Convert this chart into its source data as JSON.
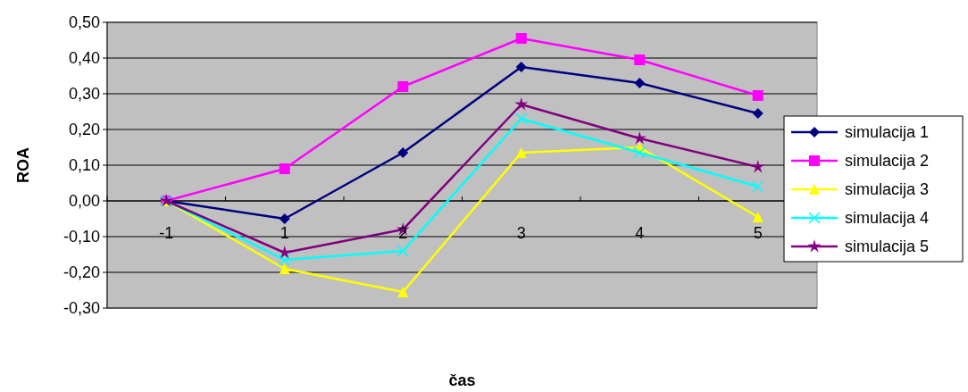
{
  "chart_data": {
    "type": "line",
    "xlabel": "čas",
    "ylabel": "ROA",
    "categories": [
      "-1",
      "1",
      "2",
      "3",
      "4",
      "5"
    ],
    "series": [
      {
        "name": "simulacija 1",
        "color": "#000080",
        "marker": "diamond",
        "values": [
          0,
          -0.05,
          0.135,
          0.375,
          0.33,
          0.245
        ]
      },
      {
        "name": "simulacija 2",
        "color": "#ff00ff",
        "marker": "square",
        "values": [
          0,
          0.09,
          0.32,
          0.455,
          0.395,
          0.295
        ]
      },
      {
        "name": "simulacija 3",
        "color": "#ffff00",
        "marker": "triangle",
        "values": [
          0,
          -0.19,
          -0.255,
          0.135,
          0.15,
          -0.045
        ]
      },
      {
        "name": "simulacija 4",
        "color": "#00ffff",
        "marker": "cross",
        "values": [
          0,
          -0.165,
          -0.14,
          0.23,
          0.135,
          0.04
        ]
      },
      {
        "name": "simulacija 5",
        "color": "#800080",
        "marker": "star",
        "values": [
          0,
          -0.145,
          -0.08,
          0.27,
          0.175,
          0.095
        ]
      }
    ],
    "ylim": [
      -0.3,
      0.5
    ],
    "yticks": [
      {
        "value": -0.3,
        "label": "-0,30"
      },
      {
        "value": -0.2,
        "label": "-0,20"
      },
      {
        "value": -0.1,
        "label": "-0,10"
      },
      {
        "value": 0,
        "label": "0,00"
      },
      {
        "value": 0.1,
        "label": "0,10"
      },
      {
        "value": 0.2,
        "label": "0,20"
      },
      {
        "value": 0.3,
        "label": "0,30"
      },
      {
        "value": 0.4,
        "label": "0,40"
      },
      {
        "value": 0.5,
        "label": "0,50"
      }
    ],
    "grid": "y",
    "legend": "right"
  }
}
